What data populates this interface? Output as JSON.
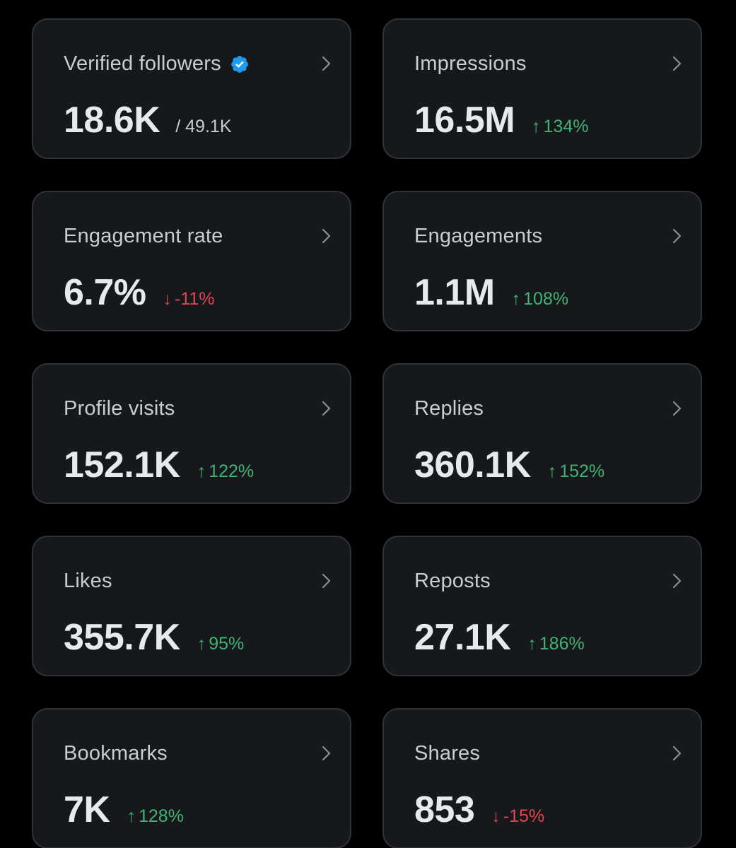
{
  "colors": {
    "background": "#000000",
    "card": "#16181c",
    "card_border": "#2f3336",
    "positive": "#3fb373",
    "negative": "#e0464f",
    "verified": "#1d9bf0"
  },
  "cards": [
    {
      "title": "Verified followers",
      "value": "18.6K",
      "sub": "/ 49.1K",
      "delta_arrow": "",
      "delta": "",
      "trend": "none",
      "icon": "verified-badge-icon"
    },
    {
      "title": "Impressions",
      "value": "16.5M",
      "sub": "",
      "delta_arrow": "↑",
      "delta": "134%",
      "trend": "up"
    },
    {
      "title": "Engagement rate",
      "value": "6.7%",
      "sub": "",
      "delta_arrow": "↓",
      "delta": "-11%",
      "trend": "down"
    },
    {
      "title": "Engagements",
      "value": "1.1M",
      "sub": "",
      "delta_arrow": "↑",
      "delta": "108%",
      "trend": "up"
    },
    {
      "title": "Profile visits",
      "value": "152.1K",
      "sub": "",
      "delta_arrow": "↑",
      "delta": "122%",
      "trend": "up"
    },
    {
      "title": "Replies",
      "value": "360.1K",
      "sub": "",
      "delta_arrow": "↑",
      "delta": "152%",
      "trend": "up"
    },
    {
      "title": "Likes",
      "value": "355.7K",
      "sub": "",
      "delta_arrow": "↑",
      "delta": "95%",
      "trend": "up"
    },
    {
      "title": "Reposts",
      "value": "27.1K",
      "sub": "",
      "delta_arrow": "↑",
      "delta": "186%",
      "trend": "up"
    },
    {
      "title": "Bookmarks",
      "value": "7K",
      "sub": "",
      "delta_arrow": "↑",
      "delta": "128%",
      "trend": "up"
    },
    {
      "title": "Shares",
      "value": "853",
      "sub": "",
      "delta_arrow": "↓",
      "delta": "-15%",
      "trend": "down"
    }
  ]
}
